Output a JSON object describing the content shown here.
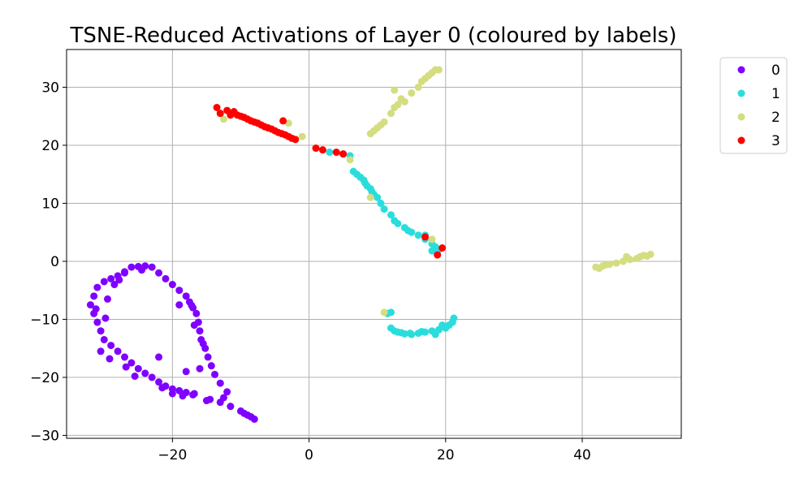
{
  "chart_data": {
    "type": "scatter",
    "title": "TSNE-Reduced Activations of Layer 0 (coloured by labels)",
    "xlabel": "",
    "ylabel": "",
    "xlim": [
      -35.5,
      54.5
    ],
    "ylim": [
      -30.5,
      36.5
    ],
    "x_ticks": [
      -20,
      0,
      20,
      40
    ],
    "y_ticks": [
      -30,
      -20,
      -10,
      0,
      10,
      20,
      30
    ],
    "x_tick_labels": [
      "−20",
      "0",
      "20",
      "40"
    ],
    "y_tick_labels": [
      "−30",
      "−20",
      "−10",
      "0",
      "10",
      "20",
      "30"
    ],
    "grid": true,
    "legend_position": "outside-right-top",
    "series": [
      {
        "name": "0",
        "color": "#8000ff",
        "points": [
          [
            -8,
            -27.2
          ],
          [
            -9,
            -26.5
          ],
          [
            -10,
            -25.8
          ],
          [
            -11.5,
            -25
          ],
          [
            -13,
            -24.3
          ],
          [
            -14.5,
            -23.8
          ],
          [
            -15,
            -24
          ],
          [
            -12,
            -22.5
          ],
          [
            -13,
            -21
          ],
          [
            -13.8,
            -19.5
          ],
          [
            -14.3,
            -18
          ],
          [
            -14.8,
            -16.5
          ],
          [
            -15.2,
            -15
          ],
          [
            -15.8,
            -13.5
          ],
          [
            -16,
            -12
          ],
          [
            -16.2,
            -10.5
          ],
          [
            -16.5,
            -9
          ],
          [
            -17,
            -8
          ],
          [
            -17.5,
            -7
          ],
          [
            -18,
            -6
          ],
          [
            -19,
            -5
          ],
          [
            -20,
            -4
          ],
          [
            -21,
            -3
          ],
          [
            -22,
            -2
          ],
          [
            -23,
            -1
          ],
          [
            -24,
            -0.8
          ],
          [
            -25,
            -0.9
          ],
          [
            -26,
            -1
          ],
          [
            -27,
            -1.8
          ],
          [
            -28,
            -2.5
          ],
          [
            -29,
            -3
          ],
          [
            -30,
            -3.5
          ],
          [
            -31,
            -4.5
          ],
          [
            -31.5,
            -6
          ],
          [
            -32,
            -7.5
          ],
          [
            -31.5,
            -9
          ],
          [
            -31,
            -10.5
          ],
          [
            -30.5,
            -12
          ],
          [
            -30,
            -13.5
          ],
          [
            -29,
            -14.5
          ],
          [
            -28,
            -15.5
          ],
          [
            -27,
            -16.5
          ],
          [
            -26,
            -17.5
          ],
          [
            -25,
            -18.5
          ],
          [
            -24,
            -19.3
          ],
          [
            -23,
            -20
          ],
          [
            -22,
            -20.8
          ],
          [
            -21,
            -21.5
          ],
          [
            -20,
            -22
          ],
          [
            -19,
            -22.3
          ],
          [
            -18,
            -22.6
          ],
          [
            -17,
            -23
          ],
          [
            -19,
            -7.5
          ],
          [
            -22,
            -16.5
          ],
          [
            -18,
            -19
          ],
          [
            -16,
            -18.5
          ],
          [
            -12.5,
            -23.5
          ],
          [
            -25.5,
            -19.8
          ],
          [
            -29.8,
            -9.8
          ],
          [
            -28.5,
            -4
          ],
          [
            -27,
            -2
          ],
          [
            -24.5,
            -1.5
          ],
          [
            -30.5,
            -15.5
          ],
          [
            -29.2,
            -16.8
          ],
          [
            -26.8,
            -18.2
          ],
          [
            -21.5,
            -21.8
          ],
          [
            -20,
            -22.8
          ],
          [
            -18.5,
            -23.2
          ],
          [
            -16.8,
            -22.8
          ],
          [
            -9.5,
            -26.2
          ],
          [
            -8.5,
            -26.8
          ],
          [
            -31.2,
            -8.2
          ],
          [
            -29.5,
            -6.5
          ],
          [
            -27.8,
            -3.2
          ],
          [
            -15.5,
            -14.2
          ],
          [
            -16.8,
            -11
          ],
          [
            -17.2,
            -7.6
          ]
        ]
      },
      {
        "name": "1",
        "color": "#2adddd",
        "points": [
          [
            3,
            18.8
          ],
          [
            5,
            18.5
          ],
          [
            6,
            18.2
          ],
          [
            6.5,
            15.5
          ],
          [
            7,
            15
          ],
          [
            7.5,
            14.5
          ],
          [
            8,
            14
          ],
          [
            8.5,
            13
          ],
          [
            9,
            12.5
          ],
          [
            9.5,
            11.5
          ],
          [
            10,
            11
          ],
          [
            10.5,
            10
          ],
          [
            11,
            9
          ],
          [
            12,
            8
          ],
          [
            12.5,
            7
          ],
          [
            13,
            6.5
          ],
          [
            14,
            5.8
          ],
          [
            15,
            5
          ],
          [
            16,
            4.5
          ],
          [
            17,
            3.8
          ],
          [
            18,
            3
          ],
          [
            18.5,
            2.5
          ],
          [
            19,
            2
          ],
          [
            18,
            1.8
          ],
          [
            17,
            4.5
          ],
          [
            12,
            -8.8
          ],
          [
            12,
            -11.5
          ],
          [
            12.5,
            -12
          ],
          [
            13,
            -12.2
          ],
          [
            14,
            -12.5
          ],
          [
            15,
            -12.6
          ],
          [
            16,
            -12.4
          ],
          [
            17,
            -12.2
          ],
          [
            18,
            -12
          ],
          [
            18.5,
            -12.6
          ],
          [
            19,
            -11.8
          ],
          [
            20,
            -11.5
          ],
          [
            20.5,
            -11
          ],
          [
            21,
            -10.5
          ],
          [
            21.2,
            -9.8
          ],
          [
            19.5,
            -11
          ],
          [
            16.5,
            -12.1
          ],
          [
            14.8,
            -12.4
          ],
          [
            13.5,
            -12.3
          ],
          [
            11.5,
            -9
          ],
          [
            9.2,
            12
          ],
          [
            8.2,
            13.5
          ],
          [
            14.5,
            5.3
          ]
        ]
      },
      {
        "name": "2",
        "color": "#d4dd80",
        "points": [
          [
            9,
            22
          ],
          [
            9.5,
            22.5
          ],
          [
            10,
            23
          ],
          [
            10.5,
            23.5
          ],
          [
            11,
            24
          ],
          [
            12,
            25.5
          ],
          [
            12.5,
            26.5
          ],
          [
            13,
            27
          ],
          [
            13.5,
            28
          ],
          [
            14,
            27.5
          ],
          [
            15,
            29
          ],
          [
            16,
            30
          ],
          [
            16.5,
            31
          ],
          [
            17,
            31.5
          ],
          [
            17.5,
            32
          ],
          [
            18,
            32.5
          ],
          [
            18.5,
            33
          ],
          [
            19,
            33
          ],
          [
            12.5,
            29.5
          ],
          [
            -1,
            21.5
          ],
          [
            -3,
            23.8
          ],
          [
            -12.5,
            24.5
          ],
          [
            6,
            17.5
          ],
          [
            9,
            11
          ],
          [
            18,
            3.8
          ],
          [
            11,
            -8.8
          ],
          [
            42,
            -1
          ],
          [
            42.5,
            -1.2
          ],
          [
            43,
            -0.8
          ],
          [
            44,
            -0.5
          ],
          [
            45,
            -0.3
          ],
          [
            46,
            0
          ],
          [
            46.5,
            0.8
          ],
          [
            47,
            0.3
          ],
          [
            48,
            0.5
          ],
          [
            48.5,
            0.8
          ],
          [
            49,
            1
          ],
          [
            50,
            1.2
          ],
          [
            49.5,
            0.9
          ],
          [
            43.5,
            -0.6
          ]
        ]
      },
      {
        "name": "3",
        "color": "#ff0000",
        "points": [
          [
            -13.5,
            26.5
          ],
          [
            -13,
            25.5
          ],
          [
            -12,
            26
          ],
          [
            -11,
            25.8
          ],
          [
            -10.5,
            25.2
          ],
          [
            -10,
            25
          ],
          [
            -9.5,
            24.8
          ],
          [
            -9,
            24.5
          ],
          [
            -8.5,
            24.2
          ],
          [
            -8,
            24
          ],
          [
            -7.5,
            23.8
          ],
          [
            -7,
            23.5
          ],
          [
            -6.5,
            23.2
          ],
          [
            -6,
            23
          ],
          [
            -5.5,
            22.8
          ],
          [
            -5,
            22.5
          ],
          [
            -4.5,
            22.2
          ],
          [
            -4,
            22
          ],
          [
            -3.5,
            21.8
          ],
          [
            -3,
            21.5
          ],
          [
            -2.5,
            21.2
          ],
          [
            -2,
            21
          ],
          [
            -3.8,
            24.2
          ],
          [
            1,
            19.5
          ],
          [
            2,
            19.2
          ],
          [
            4,
            18.8
          ],
          [
            5,
            18.5
          ],
          [
            17,
            4.2
          ],
          [
            19.5,
            2.3
          ],
          [
            18.8,
            1.1
          ],
          [
            -11.5,
            25.2
          ]
        ]
      }
    ]
  }
}
